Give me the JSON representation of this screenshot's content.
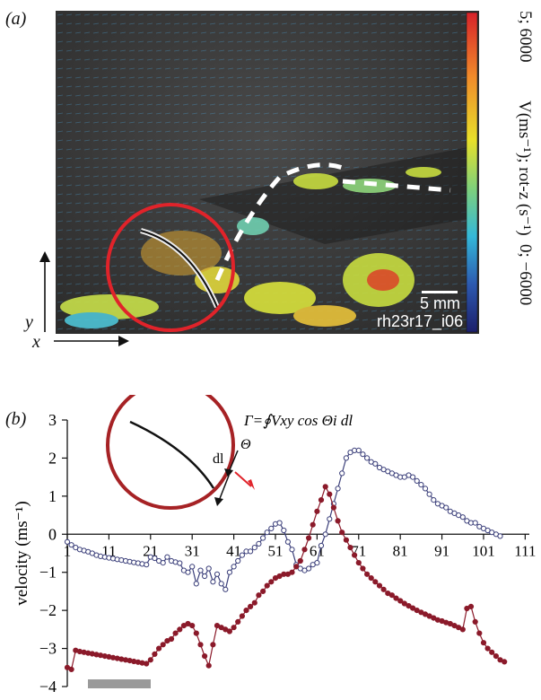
{
  "panel_a": {
    "label": "(a)",
    "colorbar_label": "V(ms⁻¹); rot-z (s⁻¹)",
    "colorbar_max": "5; 6000",
    "colorbar_min": "0; −6000",
    "scalebar_label": "5 mm",
    "run_id": "rh23r17_i06",
    "x_axis_label": "x",
    "y_axis_label": "y",
    "colors": {
      "circle": "#e0232a",
      "background": "#3a3a3a"
    }
  },
  "panel_b": {
    "label": "(b)",
    "equation": "Γ=∮Vxy cos Θi dl",
    "inset_dl": "dl",
    "inset_theta": "Θ"
  },
  "chart_data": {
    "type": "line",
    "ylabel": "velocity (ms⁻¹)",
    "xlabel": "",
    "xlim": [
      1,
      112
    ],
    "ylim": [
      -4,
      3
    ],
    "x_ticks": [
      1,
      11,
      21,
      31,
      41,
      51,
      61,
      71,
      81,
      91,
      101,
      111
    ],
    "y_ticks": [
      3,
      2,
      1,
      0,
      -1,
      -2,
      -3,
      -4
    ],
    "series": [
      {
        "color": "#3b3f7a",
        "marker": "open-circle",
        "values": [
          -0.2,
          -0.28,
          -0.35,
          -0.4,
          -0.43,
          -0.46,
          -0.5,
          -0.55,
          -0.58,
          -0.6,
          -0.62,
          -0.64,
          -0.66,
          -0.68,
          -0.7,
          -0.72,
          -0.74,
          -0.76,
          -0.78,
          -0.8,
          -0.6,
          -0.63,
          -0.7,
          -0.75,
          -0.6,
          -0.7,
          -0.73,
          -0.76,
          -0.95,
          -1.0,
          -0.85,
          -1.3,
          -0.95,
          -1.1,
          -0.9,
          -1.25,
          -1.05,
          -1.3,
          -1.45,
          -1.0,
          -0.85,
          -0.7,
          -0.55,
          -0.45,
          -0.45,
          -0.35,
          -0.25,
          -0.1,
          0.05,
          0.15,
          0.27,
          0.3,
          0.1,
          -0.2,
          -0.4,
          -0.8,
          -0.9,
          -0.95,
          -0.9,
          -0.8,
          -0.75,
          -0.3,
          0.0,
          0.4,
          0.8,
          1.2,
          1.6,
          2.0,
          2.15,
          2.2,
          2.2,
          2.1,
          2.0,
          1.9,
          1.85,
          1.75,
          1.7,
          1.65,
          1.6,
          1.55,
          1.5,
          1.5,
          1.55,
          1.5,
          1.4,
          1.3,
          1.2,
          1.05,
          0.9,
          0.8,
          0.75,
          0.7,
          0.6,
          0.55,
          0.5,
          0.45,
          0.35,
          0.3,
          0.3,
          0.2,
          0.15,
          0.1,
          0.05,
          0.0,
          -0.05
        ],
        "x_start": 1
      },
      {
        "color": "#8b1a2a",
        "marker": "filled-circle",
        "values": [
          -3.5,
          -3.55,
          -3.05,
          -3.08,
          -3.1,
          -3.12,
          -3.14,
          -3.16,
          -3.18,
          -3.2,
          -3.22,
          -3.24,
          -3.26,
          -3.28,
          -3.3,
          -3.32,
          -3.34,
          -3.36,
          -3.38,
          -3.4,
          -3.3,
          -3.15,
          -3.0,
          -2.9,
          -2.8,
          -2.75,
          -2.6,
          -2.5,
          -2.4,
          -2.35,
          -2.4,
          -2.6,
          -2.9,
          -3.2,
          -3.45,
          -2.9,
          -2.4,
          -2.45,
          -2.5,
          -2.55,
          -2.45,
          -2.3,
          -2.15,
          -2.0,
          -1.9,
          -1.8,
          -1.6,
          -1.5,
          -1.35,
          -1.25,
          -1.15,
          -1.1,
          -1.05,
          -1.05,
          -1.0,
          -0.85,
          -0.7,
          -0.4,
          -0.1,
          0.25,
          0.6,
          0.9,
          1.25,
          1.05,
          0.7,
          0.35,
          0.05,
          -0.15,
          -0.35,
          -0.55,
          -0.75,
          -0.9,
          -1.05,
          -1.15,
          -1.25,
          -1.35,
          -1.45,
          -1.55,
          -1.6,
          -1.68,
          -1.75,
          -1.82,
          -1.88,
          -1.94,
          -2.0,
          -2.05,
          -2.1,
          -2.15,
          -2.2,
          -2.25,
          -2.28,
          -2.32,
          -2.35,
          -2.4,
          -2.45,
          -2.5,
          -1.95,
          -1.9,
          -2.3,
          -2.6,
          -2.85,
          -3.0,
          -3.1,
          -3.2,
          -3.3,
          -3.35
        ],
        "x_start": 1
      }
    ]
  }
}
